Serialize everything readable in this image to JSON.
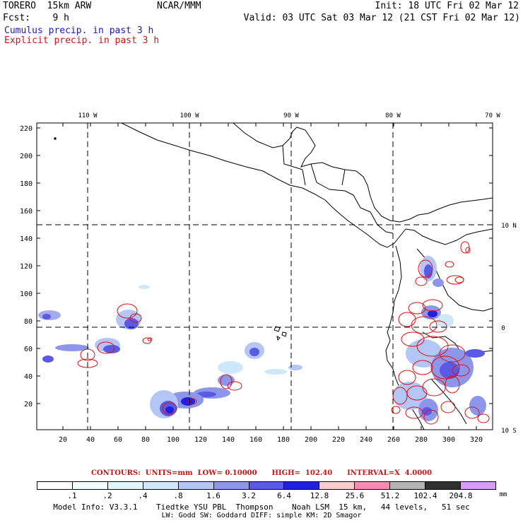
{
  "header": {
    "model_title": "TORERO  15km ARW",
    "org": "NCAR/MMM",
    "init": "Init: 18 UTC Fri 02 Mar 12",
    "fcst": "Fcst:    9 h",
    "valid": "Valid: 03 UTC Sat 03 Mar 12 (21 CST Fri 02 Mar 12)",
    "field1": "Cumulus precip. in past 3 h",
    "field2": "Explicit precip. in past 3 h"
  },
  "colors": {
    "field1": "#1a1ab4",
    "field2": "#d41414",
    "contour": "#e01010",
    "coast": "#000000"
  },
  "map": {
    "top_lon_labels": [
      "110 W",
      "100 W",
      "90 W",
      "80 W",
      "70 W"
    ],
    "right_lat_labels": [
      "10 N",
      "0",
      "10 S"
    ],
    "y_ticks": [
      "220",
      "200",
      "180",
      "160",
      "140",
      "120",
      "100",
      "80",
      "60",
      "40",
      "20"
    ],
    "x_ticks": [
      "20",
      "40",
      "60",
      "80",
      "100",
      "120",
      "140",
      "160",
      "180",
      "200",
      "220",
      "240",
      "260",
      "280",
      "300",
      "320"
    ],
    "grid_lines": "dashed"
  },
  "contour_info": "CONTOURS:  UNITS=mm  LOW= 0.10000      HIGH=  102.40      INTERVAL=X  4.0000",
  "colorbar": {
    "colors": [
      "#ffffff",
      "#f2fbff",
      "#e2f4fc",
      "#cfe7fb",
      "#b4c6f5",
      "#8e96ec",
      "#5a5ae4",
      "#2020e0",
      "#f8cccc",
      "#f48cb4",
      "#b4b4b4",
      "#303030",
      "#d89cf4"
    ],
    "labels": [
      ".1",
      ".2",
      ".4",
      ".8",
      "1.6",
      "3.2",
      "6.4",
      "12.8",
      "25.6",
      "51.2",
      "102.4",
      "204.8"
    ],
    "unit": "mm"
  },
  "model_info": {
    "line1": "Model Info: V3.3.1    Tiedtke YSU PBL  Thompson    Noah LSM  15 km,   44 levels,   51 sec",
    "line2": "LW: Godd SW: Goddard DIFF: simple KM: 2D Smagor"
  }
}
